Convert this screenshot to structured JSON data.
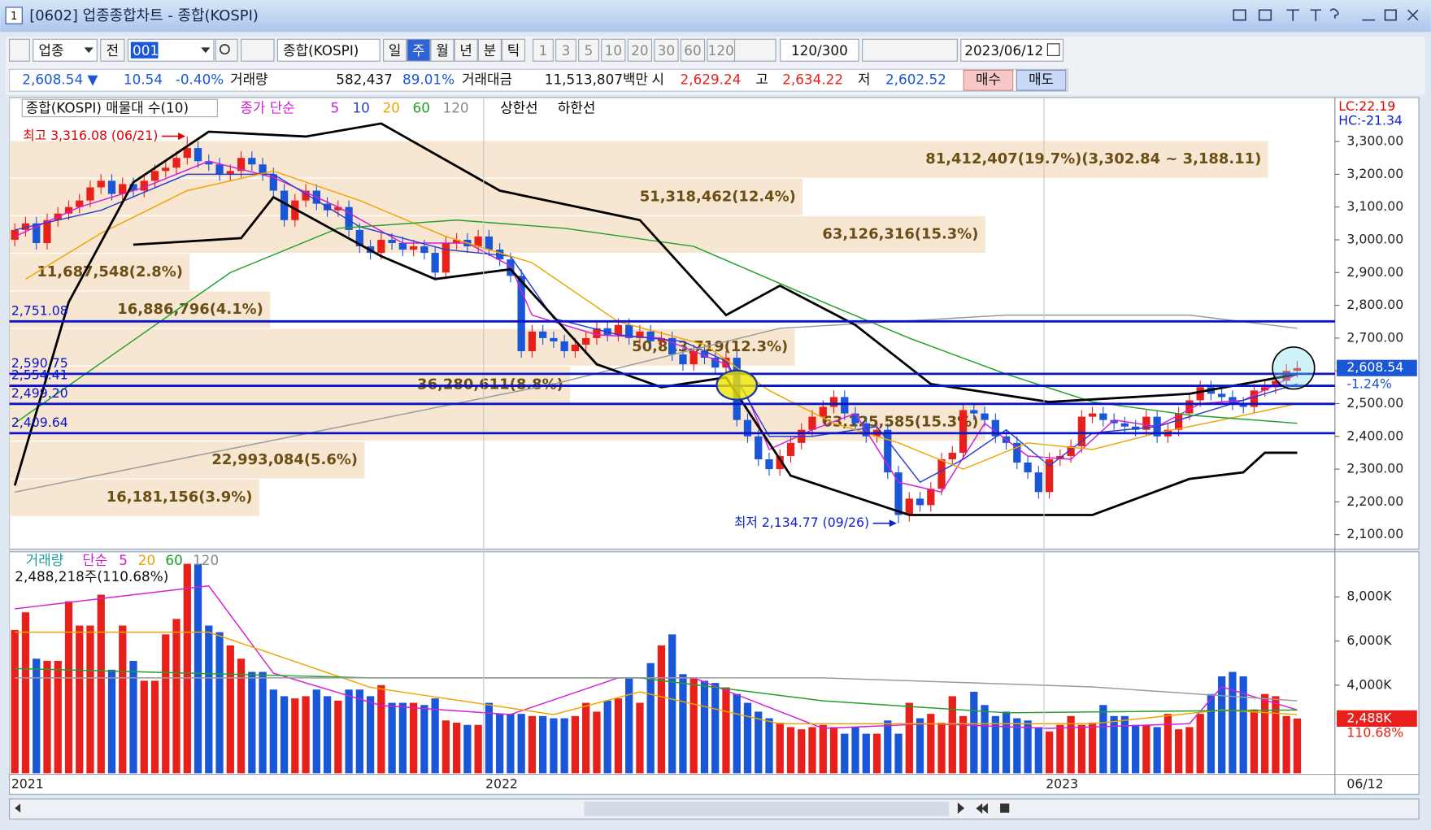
{
  "window": {
    "title": "[0602] 업종종합차트 - 종합(KOSPI)"
  },
  "toolbar": {
    "market": "업종",
    "scope": "전",
    "code": "001",
    "name": "종합(KOSPI)",
    "periods": [
      "일",
      "주",
      "월",
      "년",
      "분",
      "틱"
    ],
    "intervals": [
      "1",
      "3",
      "5",
      "10",
      "20",
      "30",
      "60",
      "120"
    ],
    "count": "120/300",
    "date": "2023/06/12"
  },
  "quote": {
    "price": "2,608.54 ▼",
    "change": "10.54",
    "change_pct": "-0.40%",
    "volume_label": "거래량",
    "volume": "582,437",
    "volume_ratio": "89.01%",
    "amount_label": "거래대금",
    "amount": "11,513,807백만",
    "open_label": "시",
    "open": "2,629.24",
    "high_label": "고",
    "high": "2,634.22",
    "low_label": "저",
    "low": "2,602.52",
    "buy": "매수",
    "sell": "매도"
  },
  "chart_data": [
    {
      "type": "candlestick",
      "legend_title": "종합(KOSPI) 매물대 수(10)",
      "legend_prefix": "종가 단순",
      "up_color": "#e8201c",
      "down_color": "#1a56d8",
      "open": [
        3000,
        3030,
        3050,
        2990,
        3060,
        3080,
        3100,
        3120,
        3160,
        3180,
        3140,
        3170,
        3150,
        3180,
        3210,
        3220,
        3250,
        3280,
        3240,
        3230,
        3200,
        3210,
        3250,
        3230,
        3200,
        3150,
        3060,
        3120,
        3150,
        3110,
        3090,
        3100,
        3030,
        2980,
        2960,
        3000,
        2990,
        2970,
        2980,
        2960,
        2900,
        2990,
        3000,
        2980,
        3010,
        2970,
        2940,
        2890,
        2660,
        2720,
        2700,
        2690,
        2660,
        2680,
        2700,
        2730,
        2710,
        2740,
        2700,
        2720,
        2690,
        2700,
        2650,
        2620,
        2660,
        2640,
        2610,
        2640,
        2450,
        2400,
        2330,
        2300,
        2340,
        2380,
        2420,
        2460,
        2490,
        2520,
        2470,
        2440,
        2400,
        2420,
        2290,
        2160,
        2210,
        2190,
        2240,
        2330,
        2350,
        2480,
        2470,
        2450,
        2400,
        2380,
        2320,
        2290,
        2230,
        2330,
        2340,
        2370,
        2460,
        2470,
        2450,
        2440,
        2430,
        2420,
        2460,
        2400,
        2420,
        2470,
        2510,
        2550,
        2530,
        2520,
        2500,
        2490,
        2540,
        2550,
        2570,
        2600
      ],
      "high": [
        3050,
        3070,
        3070,
        3080,
        3100,
        3120,
        3140,
        3180,
        3200,
        3200,
        3190,
        3190,
        3200,
        3230,
        3240,
        3270,
        3316.08,
        3300,
        3260,
        3250,
        3230,
        3270,
        3270,
        3250,
        3220,
        3170,
        3140,
        3170,
        3170,
        3130,
        3120,
        3120,
        3050,
        3000,
        3020,
        3020,
        3010,
        3000,
        3000,
        2980,
        3010,
        3020,
        3020,
        3030,
        3030,
        2990,
        2960,
        2910,
        2740,
        2740,
        2720,
        2710,
        2700,
        2720,
        2750,
        2750,
        2760,
        2760,
        2740,
        2740,
        2720,
        2720,
        2670,
        2680,
        2680,
        2660,
        2660,
        2660,
        2470,
        2420,
        2350,
        2360,
        2400,
        2440,
        2480,
        2510,
        2540,
        2540,
        2490,
        2460,
        2440,
        2440,
        2310,
        2230,
        2230,
        2260,
        2350,
        2370,
        2500,
        2500,
        2490,
        2470,
        2420,
        2400,
        2340,
        2310,
        2350,
        2360,
        2390,
        2480,
        2490,
        2490,
        2470,
        2460,
        2450,
        2480,
        2480,
        2440,
        2490,
        2530,
        2570,
        2570,
        2550,
        2540,
        2520,
        2560,
        2570,
        2590,
        2620,
        2630
      ],
      "low": [
        2980,
        3010,
        2970,
        2970,
        3040,
        3060,
        3080,
        3100,
        3140,
        3120,
        3120,
        3130,
        3130,
        3160,
        3190,
        3200,
        3230,
        3220,
        3210,
        3180,
        3180,
        3190,
        3210,
        3180,
        3130,
        3040,
        3040,
        3100,
        3090,
        3070,
        3070,
        3010,
        2960,
        2940,
        2940,
        2970,
        2950,
        2950,
        2940,
        2880,
        2880,
        2970,
        2960,
        2960,
        2950,
        2920,
        2870,
        2640,
        2640,
        2680,
        2670,
        2640,
        2640,
        2660,
        2680,
        2690,
        2690,
        2680,
        2680,
        2670,
        2670,
        2630,
        2600,
        2600,
        2620,
        2590,
        2590,
        2430,
        2380,
        2310,
        2280,
        2280,
        2320,
        2360,
        2400,
        2440,
        2470,
        2450,
        2420,
        2380,
        2380,
        2270,
        2134.77,
        2140,
        2170,
        2170,
        2220,
        2310,
        2330,
        2450,
        2430,
        2380,
        2360,
        2300,
        2270,
        2210,
        2210,
        2310,
        2320,
        2350,
        2440,
        2430,
        2420,
        2410,
        2400,
        2400,
        2380,
        2380,
        2400,
        2450,
        2490,
        2510,
        2500,
        2480,
        2470,
        2470,
        2520,
        2530,
        2550,
        2580
      ],
      "close": [
        3030,
        3050,
        2990,
        3060,
        3080,
        3100,
        3120,
        3160,
        3180,
        3140,
        3170,
        3150,
        3180,
        3210,
        3220,
        3250,
        3280,
        3240,
        3230,
        3200,
        3210,
        3250,
        3230,
        3200,
        3150,
        3060,
        3120,
        3150,
        3110,
        3090,
        3100,
        3030,
        2980,
        2960,
        3000,
        2990,
        2970,
        2980,
        2960,
        2900,
        2990,
        3000,
        2980,
        3010,
        2970,
        2940,
        2890,
        2660,
        2720,
        2700,
        2690,
        2660,
        2680,
        2700,
        2730,
        2710,
        2740,
        2700,
        2720,
        2690,
        2700,
        2650,
        2620,
        2660,
        2640,
        2610,
        2640,
        2450,
        2400,
        2330,
        2300,
        2340,
        2380,
        2420,
        2460,
        2490,
        2520,
        2470,
        2440,
        2400,
        2420,
        2290,
        2160,
        2210,
        2190,
        2240,
        2330,
        2350,
        2480,
        2470,
        2450,
        2400,
        2380,
        2320,
        2290,
        2230,
        2330,
        2340,
        2370,
        2460,
        2470,
        2450,
        2440,
        2430,
        2420,
        2460,
        2400,
        2420,
        2470,
        2510,
        2550,
        2530,
        2520,
        2500,
        2490,
        2540,
        2550,
        2570,
        2600,
        2608.54
      ],
      "xlim": [
        -0.5,
        122.5
      ],
      "xticks": [
        {
          "value": -0.5,
          "label": "2021"
        },
        {
          "value": 43.5,
          "label": "2022"
        },
        {
          "value": 95.5,
          "label": "2023"
        }
      ],
      "xlabel_right": "06/12",
      "ylim": [
        2056,
        3434
      ],
      "yticks": [
        {
          "value": 2100,
          "label": "2,100.00"
        },
        {
          "value": 2200,
          "label": "2,200.00"
        },
        {
          "value": 2300,
          "label": "2,300.00"
        },
        {
          "value": 2400,
          "label": "2,400.00"
        },
        {
          "value": 2500,
          "label": "2,500.00"
        },
        {
          "value": 2600,
          "label": "2,600.00"
        },
        {
          "value": 2700,
          "label": "2,700.00"
        },
        {
          "value": 2800,
          "label": "2,800.00"
        },
        {
          "value": 2900,
          "label": "2,900.00"
        },
        {
          "value": 3000,
          "label": "3,000.00"
        },
        {
          "value": 3100,
          "label": "3,100.00"
        },
        {
          "value": 3200,
          "label": "3,200.00"
        },
        {
          "value": 3300,
          "label": "3,300.00"
        }
      ],
      "lines": [
        {
          "name": "5",
          "color": "#d41ed4",
          "x": [
            0,
            6,
            12,
            18,
            24,
            30,
            36,
            42,
            46,
            48,
            54,
            60,
            66,
            68,
            70,
            74,
            78,
            82,
            86,
            90,
            94,
            98,
            102,
            106,
            110,
            114,
            119
          ],
          "values": [
            3010,
            3100,
            3160,
            3240,
            3190,
            3100,
            2990,
            2990,
            2920,
            2770,
            2710,
            2700,
            2620,
            2520,
            2360,
            2420,
            2470,
            2260,
            2230,
            2440,
            2340,
            2330,
            2450,
            2430,
            2500,
            2510,
            2590
          ]
        },
        {
          "name": "10",
          "color": "#2a3fd0",
          "x": [
            0,
            8,
            16,
            24,
            32,
            40,
            46,
            50,
            56,
            62,
            66,
            70,
            74,
            80,
            84,
            88,
            92,
            96,
            100,
            106,
            112,
            119
          ],
          "values": [
            3030,
            3090,
            3200,
            3200,
            3040,
            2970,
            2950,
            2760,
            2710,
            2690,
            2630,
            2400,
            2400,
            2430,
            2260,
            2330,
            2420,
            2310,
            2410,
            2430,
            2490,
            2560
          ]
        },
        {
          "name": "20",
          "color": "#f0a400",
          "x": [
            1,
            8,
            16,
            24,
            32,
            40,
            48,
            56,
            64,
            70,
            76,
            82,
            88,
            94,
            100,
            106,
            112,
            119
          ],
          "values": [
            2880,
            3020,
            3150,
            3210,
            3120,
            3010,
            2930,
            2750,
            2680,
            2540,
            2440,
            2380,
            2300,
            2380,
            2360,
            2410,
            2450,
            2500
          ]
        },
        {
          "name": "60",
          "color": "#1fa02a",
          "x": [
            0,
            10,
            20,
            30,
            41,
            51,
            63,
            75,
            83,
            92,
            100,
            109,
            119
          ],
          "values": [
            2440,
            2670,
            2900,
            3035,
            3060,
            3035,
            2980,
            2810,
            2700,
            2590,
            2505,
            2465,
            2440
          ]
        },
        {
          "name": "120",
          "color": "#9a9a9a",
          "x": [
            0,
            50,
            71,
            92,
            109,
            119
          ],
          "values": [
            2230,
            2560,
            2730,
            2770,
            2770,
            2730
          ]
        },
        {
          "name": "상한선",
          "color": "#000000",
          "x": [
            0,
            5,
            11,
            18,
            27,
            34,
            45,
            58,
            66,
            71,
            78,
            85,
            96,
            109,
            119
          ],
          "values": [
            2250,
            2810,
            3175,
            3330,
            3315,
            3355,
            3150,
            3060,
            2770,
            2860,
            2740,
            2560,
            2505,
            2530,
            2590
          ]
        },
        {
          "name": "하한선",
          "color": "#000000",
          "x": [
            11,
            21,
            24,
            29,
            34,
            39,
            46,
            54,
            60,
            66,
            72,
            83,
            100,
            109,
            114,
            116,
            119
          ],
          "values": [
            2985,
            3005,
            3130,
            3040,
            2950,
            2880,
            2910,
            2620,
            2550,
            2580,
            2280,
            2160,
            2160,
            2270,
            2290,
            2350,
            2350
          ]
        }
      ],
      "levels": [
        {
          "value": 2751.08,
          "label": "2,751.08"
        },
        {
          "value": 2590.75,
          "label": "2,590.75"
        },
        {
          "value": 2554.41,
          "label": "2,554.41"
        },
        {
          "value": 2499.2,
          "label": "2,499.20"
        },
        {
          "value": 2409.64,
          "label": "2,409.64"
        }
      ],
      "level_color": "#0a14c8",
      "profile": {
        "edges": [
          3302.84,
          3188.11,
          3073.38,
          2958.65,
          2843.92,
          2729.19,
          2614.46,
          2499.73,
          2385.0,
          2270.27,
          2155.54
        ],
        "volumes": [
          81412407,
          51318462,
          63126316,
          11687548,
          16886796,
          50813719,
          36280611,
          63125585,
          22993084,
          16181156
        ],
        "value_labels": [
          "81,412,407(19.7%)(3,302.84 ~ 3,188.11)",
          "51,318,462(12.4%)",
          "63,126,316(15.3%)",
          "11,687,548(2.8%)",
          "16,886,796(4.1%)",
          "50,813,719(12.3%)",
          "36,280,611(8.8%)",
          "63,125,585(15.3%)",
          "22,993,084(5.6%)",
          "16,181,156(3.9%)"
        ],
        "color": "#f7e7d2"
      },
      "high_note": "최고 3,316.08 (06/21)",
      "low_note": "최저 2,134.77 (09/26)",
      "lc": "LC:22.19",
      "hc": "HC:-21.34",
      "last_label": "2,608.54",
      "last_change": "-1.24%"
    },
    {
      "type": "bar",
      "legend": "거래량",
      "legend_prefix": "단순",
      "info": "2,488,218주(110.68%)",
      "values": [
        6500,
        7300,
        5200,
        5100,
        5100,
        7800,
        6700,
        6700,
        8100,
        4700,
        6700,
        5100,
        4200,
        4200,
        6300,
        7000,
        9500,
        9500,
        6700,
        6400,
        5800,
        5200,
        4600,
        4600,
        3800,
        3500,
        3400,
        3500,
        3800,
        3500,
        3300,
        3800,
        3800,
        3500,
        4000,
        3200,
        3200,
        3200,
        3100,
        3400,
        2400,
        2300,
        2200,
        2200,
        3200,
        2700,
        2700,
        2700,
        2600,
        2600,
        2500,
        2500,
        2600,
        3200,
        2800,
        3300,
        3400,
        4300,
        3200,
        5000,
        5800,
        6300,
        4500,
        4300,
        4200,
        4100,
        3900,
        3600,
        3200,
        2800,
        2500,
        2300,
        2100,
        2000,
        2100,
        2200,
        2100,
        1800,
        2100,
        1800,
        1800,
        2400,
        1800,
        3200,
        2500,
        2700,
        2300,
        3500,
        2600,
        3700,
        3100,
        2600,
        2800,
        2500,
        2400,
        2100,
        1900,
        2200,
        2600,
        2200,
        2300,
        3100,
        2600,
        2600,
        2200,
        2200,
        2100,
        2700,
        2000,
        2100,
        2700,
        3600,
        4400,
        4600,
        4400,
        2900,
        3600,
        3500,
        2600,
        2488.218
      ],
      "ylim": [
        0,
        10000
      ],
      "yticks": [
        {
          "value": 4000,
          "label": "4,000K"
        },
        {
          "value": 6000,
          "label": "6,000K"
        },
        {
          "value": 8000,
          "label": "8,000K"
        }
      ],
      "lines": [
        {
          "name": "5",
          "color": "#d41ed4",
          "x": [
            0,
            18,
            24,
            34,
            46,
            56,
            63,
            75,
            85,
            96,
            109,
            112,
            119
          ],
          "values": [
            7460,
            8500,
            4540,
            3080,
            2670,
            4330,
            4330,
            2040,
            2250,
            2040,
            2250,
            3920,
            2875
          ]
        },
        {
          "name": "20",
          "color": "#f0a400",
          "x": [
            0,
            18,
            33,
            50,
            58,
            71,
            83,
            100,
            112,
            119
          ],
          "values": [
            6400,
            6400,
            3900,
            2670,
            3700,
            2250,
            2250,
            2250,
            2875,
            2670
          ]
        },
        {
          "name": "60",
          "color": "#1fa02a",
          "x": [
            0,
            33,
            58,
            75,
            92,
            119
          ],
          "values": [
            4750,
            4330,
            4330,
            3290,
            2750,
            2875
          ]
        },
        {
          "name": "120",
          "color": "#9a9a9a",
          "x": [
            0,
            50,
            75,
            100,
            119
          ],
          "values": [
            4330,
            4330,
            4330,
            3920,
            3290
          ]
        }
      ],
      "last_label": "2,488K",
      "last_ratio": "110.68%"
    }
  ]
}
